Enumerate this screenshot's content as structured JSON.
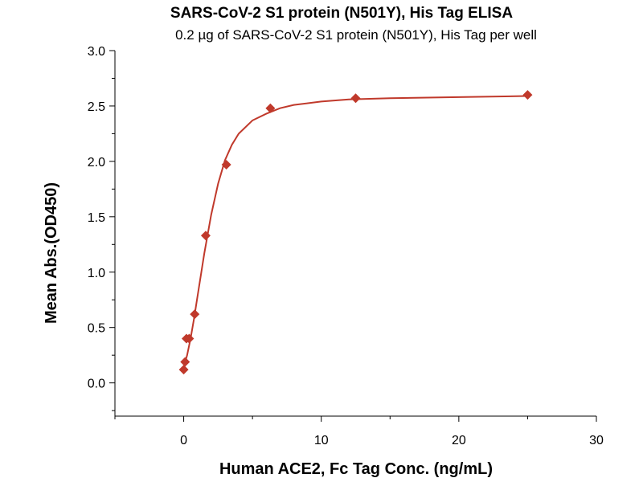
{
  "chart_data": {
    "type": "scatter",
    "title": "SARS-CoV-2 S1 protein (N501Y), His Tag ELISA",
    "subtitle": "0.2 µg of SARS-CoV-2 S1 protein (N501Y), His Tag per well",
    "xlabel": "Human ACE2, Fc Tag Conc. (ng/mL)",
    "ylabel": "Mean Abs.(OD450)",
    "xlim": [
      -5,
      30
    ],
    "ylim": [
      -0.3,
      3.0
    ],
    "xticks": [
      0,
      10,
      20,
      30
    ],
    "yticks": [
      0.0,
      0.5,
      1.0,
      1.5,
      2.0,
      2.5,
      3.0
    ],
    "x_tick_labels": [
      "0",
      "10",
      "20",
      "30"
    ],
    "y_tick_labels": [
      "0.0",
      "0.5",
      "1.0",
      "1.5",
      "2.0",
      "2.5",
      "3.0"
    ],
    "grid": false,
    "legend": "none",
    "series": [
      {
        "x": [
          0.0,
          0.1,
          0.2,
          0.4,
          0.8,
          1.6,
          3.1,
          6.3,
          12.5,
          25.0
        ],
        "y": [
          0.12,
          0.19,
          0.4,
          0.4,
          0.62,
          1.33,
          1.97,
          2.48,
          2.57,
          2.6
        ],
        "fit_curve": {
          "x": [
            0.0,
            0.25,
            0.5,
            0.75,
            1.0,
            1.5,
            2.0,
            2.5,
            3.0,
            3.5,
            4.0,
            5.0,
            6.0,
            7.0,
            8.0,
            10.0,
            12.0,
            15.0,
            20.0,
            25.0
          ],
          "y": [
            0.14,
            0.25,
            0.4,
            0.58,
            0.78,
            1.17,
            1.52,
            1.8,
            2.01,
            2.15,
            2.25,
            2.37,
            2.43,
            2.48,
            2.51,
            2.54,
            2.56,
            2.57,
            2.58,
            2.59
          ]
        }
      }
    ],
    "colors": {
      "series": "#c0392b",
      "axis": "#000000"
    }
  }
}
